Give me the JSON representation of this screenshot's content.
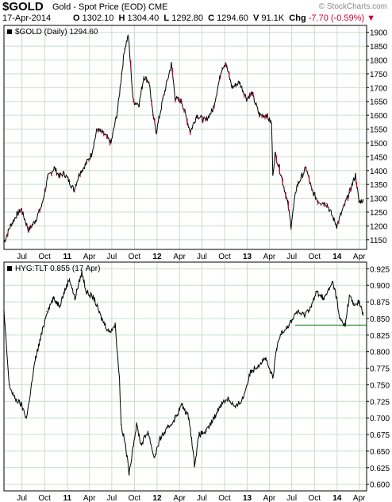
{
  "header": {
    "symbol": "$GOLD",
    "description": "Gold - Spot Price (EOD)",
    "exchange": "CME",
    "date": "17-Apr-2014",
    "open_label": "O",
    "open": "1302.10",
    "high_label": "H",
    "high": "1304.40",
    "low_label": "L",
    "low": "1292.80",
    "close_label": "C",
    "close": "1294.60",
    "volume_label": "V",
    "volume": "91.1K",
    "change_label": "Chg",
    "change": "-7.70 (-0.59%)",
    "brand": "© StockCharts.com"
  },
  "colors": {
    "price_line": "#000000",
    "down_bar": "#cc0033",
    "frame": "#000000",
    "grid": "#c8dccc",
    "support_line": "#2e8b2e",
    "legend_square": "#000000"
  },
  "chart_data": [
    {
      "type": "line",
      "legend": "$GOLD (Daily) 1294.60",
      "yticks": [
        1150,
        1200,
        1250,
        1300,
        1350,
        1400,
        1450,
        1500,
        1550,
        1600,
        1650,
        1700,
        1750,
        1800,
        1850,
        1900
      ],
      "ylim": [
        1115,
        1925
      ],
      "x_ticks": [
        "Jul",
        "Oct",
        "11",
        "Apr",
        "Jul",
        "Oct",
        "12",
        "Apr",
        "Jul",
        "Oct",
        "13",
        "Apr",
        "Jul",
        "Oct",
        "14",
        "Apr"
      ],
      "x_ticks_bold": [
        "11",
        "12",
        "13",
        "14"
      ],
      "x": [
        "2010-04-19",
        "2010-05-15",
        "2010-06-10",
        "2010-06-28",
        "2010-07-28",
        "2010-08-25",
        "2010-09-20",
        "2010-10-14",
        "2010-11-09",
        "2010-11-30",
        "2010-12-20",
        "2011-01-10",
        "2011-01-28",
        "2011-02-20",
        "2011-03-15",
        "2011-04-10",
        "2011-05-02",
        "2011-06-01",
        "2011-06-28",
        "2011-07-25",
        "2011-08-10",
        "2011-08-22",
        "2011-09-06",
        "2011-09-26",
        "2011-10-20",
        "2011-11-08",
        "2011-11-30",
        "2011-12-15",
        "2011-12-29",
        "2012-01-25",
        "2012-02-28",
        "2012-03-15",
        "2012-04-10",
        "2012-05-15",
        "2012-06-10",
        "2012-07-15",
        "2012-08-15",
        "2012-09-20",
        "2012-10-05",
        "2012-11-01",
        "2012-11-30",
        "2012-12-30",
        "2013-01-20",
        "2013-02-20",
        "2013-03-20",
        "2013-04-10",
        "2013-04-15",
        "2013-04-25",
        "2013-05-20",
        "2013-06-15",
        "2013-06-28",
        "2013-07-20",
        "2013-08-28",
        "2013-09-20",
        "2013-10-15",
        "2013-11-20",
        "2013-12-31",
        "2014-01-20",
        "2014-02-20",
        "2014-03-17",
        "2014-03-31",
        "2014-04-17"
      ],
      "y": [
        1140,
        1200,
        1240,
        1260,
        1185,
        1220,
        1275,
        1375,
        1410,
        1380,
        1390,
        1360,
        1330,
        1390,
        1420,
        1460,
        1550,
        1530,
        1500,
        1620,
        1750,
        1840,
        1890,
        1650,
        1640,
        1740,
        1720,
        1600,
        1540,
        1660,
        1785,
        1660,
        1650,
        1540,
        1600,
        1580,
        1620,
        1770,
        1790,
        1700,
        1720,
        1660,
        1680,
        1600,
        1600,
        1570,
        1390,
        1460,
        1380,
        1280,
        1200,
        1340,
        1410,
        1330,
        1290,
        1280,
        1200,
        1250,
        1320,
        1385,
        1285,
        1294.6
      ]
    },
    {
      "type": "line",
      "legend": "HYG:TLT 0.855 (17 Apr)",
      "yticks": [
        0.6,
        0.625,
        0.65,
        0.675,
        0.7,
        0.725,
        0.75,
        0.775,
        0.8,
        0.825,
        0.85,
        0.875,
        0.9,
        0.925
      ],
      "ytick_labels": [
        "0.600",
        "0.625",
        "0.650",
        "0.675",
        "0.700",
        "0.725",
        "0.750",
        "0.775",
        "0.800",
        "0.825",
        "0.850",
        "0.875",
        "0.900",
        "0.925"
      ],
      "ylim": [
        0.59,
        0.935
      ],
      "x_ticks": [
        "Jul",
        "Oct",
        "11",
        "Apr",
        "Jul",
        "Oct",
        "12",
        "Apr",
        "Jul",
        "Oct",
        "13",
        "Apr",
        "Jul",
        "Oct",
        "14",
        "Apr"
      ],
      "x_ticks_bold": [
        "11",
        "12",
        "13",
        "14"
      ],
      "x": [
        "2010-04-19",
        "2010-05-10",
        "2010-06-01",
        "2010-06-28",
        "2010-07-20",
        "2010-08-25",
        "2010-09-15",
        "2010-10-10",
        "2010-11-05",
        "2010-12-01",
        "2010-12-20",
        "2011-01-10",
        "2011-02-01",
        "2011-03-01",
        "2011-03-20",
        "2011-04-20",
        "2011-05-20",
        "2011-06-20",
        "2011-07-15",
        "2011-08-01",
        "2011-08-08",
        "2011-08-25",
        "2011-09-10",
        "2011-09-22",
        "2011-10-10",
        "2011-10-28",
        "2011-11-25",
        "2011-12-20",
        "2012-01-15",
        "2012-02-15",
        "2012-03-15",
        "2012-04-10",
        "2012-05-10",
        "2012-06-01",
        "2012-06-20",
        "2012-07-20",
        "2012-08-20",
        "2012-09-15",
        "2012-10-15",
        "2012-11-15",
        "2012-12-15",
        "2013-01-15",
        "2013-02-15",
        "2013-03-15",
        "2013-04-15",
        "2013-05-01",
        "2013-05-20",
        "2013-06-20",
        "2013-07-20",
        "2013-08-20",
        "2013-09-20",
        "2013-10-10",
        "2013-11-10",
        "2013-12-15",
        "2013-12-31",
        "2014-01-10",
        "2014-02-03",
        "2014-02-20",
        "2014-03-10",
        "2014-04-01",
        "2014-04-17"
      ],
      "y": [
        0.86,
        0.75,
        0.73,
        0.72,
        0.7,
        0.79,
        0.82,
        0.86,
        0.88,
        0.87,
        0.89,
        0.91,
        0.88,
        0.92,
        0.89,
        0.88,
        0.85,
        0.83,
        0.84,
        0.76,
        0.69,
        0.66,
        0.615,
        0.65,
        0.69,
        0.66,
        0.68,
        0.64,
        0.67,
        0.685,
        0.7,
        0.72,
        0.7,
        0.63,
        0.675,
        0.68,
        0.7,
        0.72,
        0.73,
        0.715,
        0.73,
        0.77,
        0.78,
        0.79,
        0.76,
        0.805,
        0.83,
        0.84,
        0.86,
        0.855,
        0.87,
        0.89,
        0.88,
        0.905,
        0.88,
        0.85,
        0.84,
        0.885,
        0.87,
        0.875,
        0.855
      ],
      "support_level": 0.84,
      "support_x": [
        "2013-07-15",
        "2014-04-30"
      ]
    }
  ]
}
